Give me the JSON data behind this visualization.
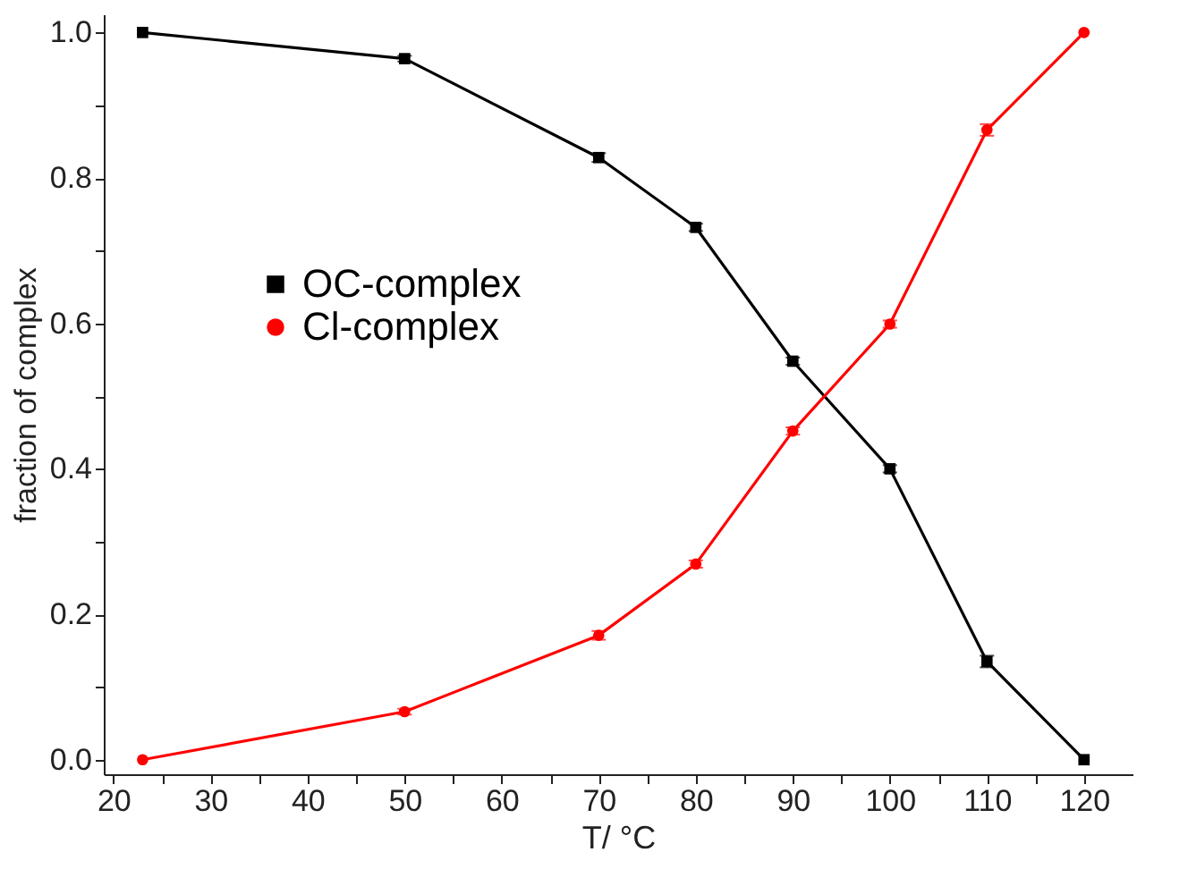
{
  "chart_data": {
    "type": "line",
    "xlabel": "T/ °C",
    "ylabel": "fraction of complex",
    "x": [
      23,
      50,
      70,
      80,
      90,
      100,
      110,
      120
    ],
    "series": [
      {
        "name": "OC-complex",
        "color": "#000000",
        "marker": "square",
        "values": [
          1.0,
          0.964,
          0.828,
          0.732,
          0.548,
          0.4,
          0.135,
          0.0
        ],
        "errors": [
          null,
          0.004,
          0.006,
          0.005,
          0.005,
          0.005,
          0.008,
          null
        ]
      },
      {
        "name": "Cl-complex",
        "color": "#ff0000",
        "marker": "circle",
        "values": [
          0.0,
          0.066,
          0.171,
          0.269,
          0.452,
          0.599,
          0.866,
          1.0
        ],
        "errors": [
          null,
          0.004,
          0.006,
          0.005,
          0.005,
          0.005,
          0.008,
          null
        ]
      }
    ],
    "xlim": [
      19,
      125
    ],
    "ylim": [
      -0.02,
      1.025
    ],
    "xticks": [
      20,
      {
        "value": 25,
        "label": null
      },
      30,
      {
        "value": 35,
        "label": null
      },
      40,
      {
        "value": 45,
        "label": null
      },
      50,
      {
        "value": 55,
        "label": null
      },
      60,
      {
        "value": 65,
        "label": null
      },
      70,
      {
        "value": 75,
        "label": null
      },
      80,
      {
        "value": 85,
        "label": null
      },
      90,
      {
        "value": 95,
        "label": null
      },
      100,
      {
        "value": 105,
        "label": null
      },
      110,
      {
        "value": 115,
        "label": null
      },
      120
    ],
    "yticks": [
      {
        "value": 0,
        "label": "0.0"
      },
      {
        "value": 0.1,
        "label": null
      },
      0.2,
      {
        "value": 0.3,
        "label": null
      },
      0.4,
      {
        "value": 0.5,
        "label": null
      },
      0.6,
      {
        "value": 0.7,
        "label": null
      },
      0.8,
      {
        "value": 0.9,
        "label": null
      },
      {
        "value": 1,
        "label": "1.0"
      }
    ],
    "legend": "top left",
    "grid": false,
    "line_style": "solid"
  }
}
